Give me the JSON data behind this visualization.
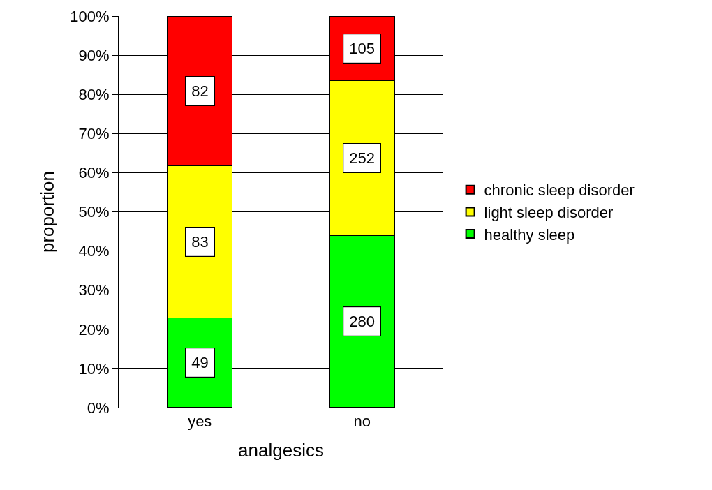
{
  "chart_data": {
    "type": "bar",
    "stacked": true,
    "xlabel": "analgesics",
    "ylabel": "proportion",
    "categories": [
      "yes",
      "no"
    ],
    "series": [
      {
        "name": "healthy sleep",
        "color": "#00ff00",
        "values": [
          22.9,
          43.9
        ]
      },
      {
        "name": "light sleep disorder",
        "color": "#ffff00",
        "values": [
          38.8,
          39.6
        ]
      },
      {
        "name": "chronic sleep disorder",
        "color": "#ff0000",
        "values": [
          38.3,
          16.5
        ]
      }
    ],
    "annotations": [
      "49",
      "83",
      "82",
      "280",
      "252",
      "105"
    ],
    "ylim": [
      0,
      100
    ],
    "yticks": [
      {
        "value": 0,
        "label": "0%"
      },
      {
        "value": 10,
        "label": "10%"
      },
      {
        "value": 20,
        "label": "20%"
      },
      {
        "value": 30,
        "label": "30%"
      },
      {
        "value": 40,
        "label": "40%"
      },
      {
        "value": 50,
        "label": "50%"
      },
      {
        "value": 60,
        "label": "60%"
      },
      {
        "value": 70,
        "label": "70%"
      },
      {
        "value": 80,
        "label": "80%"
      },
      {
        "value": 90,
        "label": "90%"
      },
      {
        "value": 100,
        "label": "100%"
      }
    ],
    "grid": "y",
    "legend": "right"
  }
}
